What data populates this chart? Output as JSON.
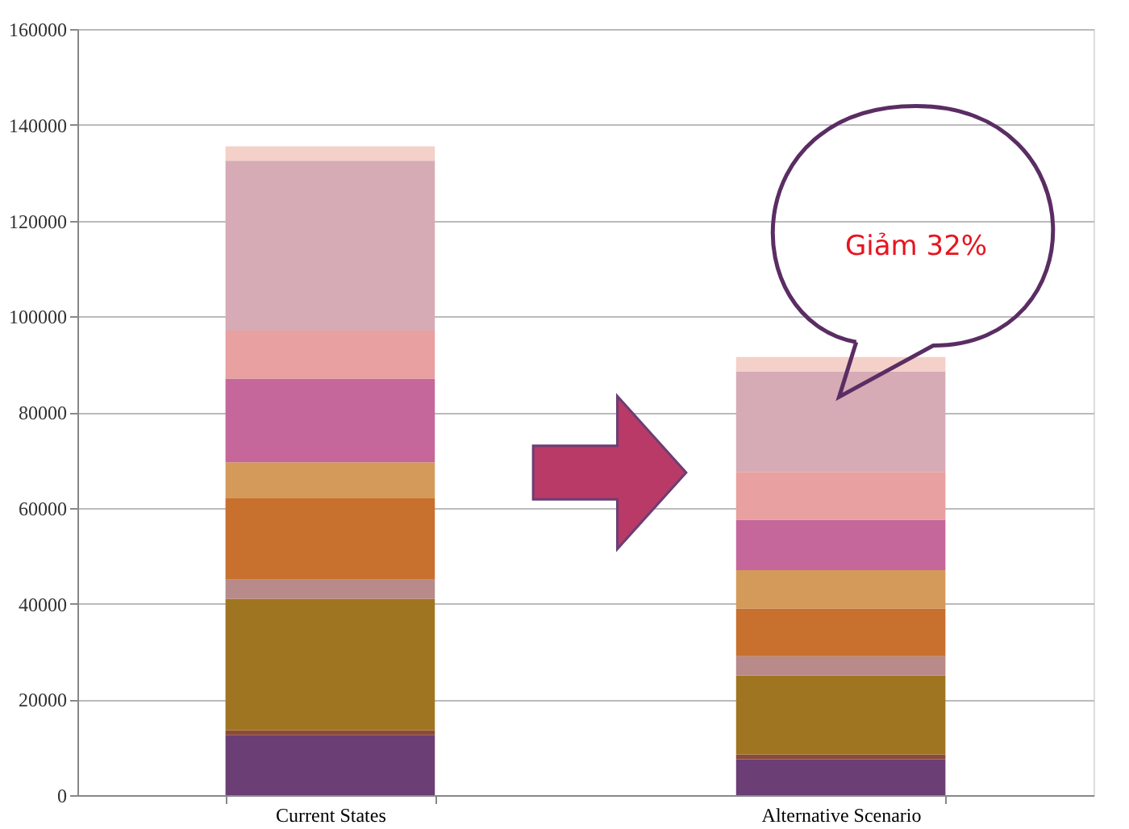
{
  "chart_data": {
    "type": "bar",
    "stacked": true,
    "categories": [
      "Current States",
      "Alternative Scenario"
    ],
    "series": [
      {
        "color": "#6b3e75",
        "values": [
          12500,
          7500
        ]
      },
      {
        "color": "#8c4a3a",
        "values": [
          1000,
          1000
        ]
      },
      {
        "color": "#a07522",
        "values": [
          27500,
          16500
        ]
      },
      {
        "color": "#b88a8a",
        "values": [
          4000,
          4000
        ]
      },
      {
        "color": "#c8702e",
        "values": [
          17000,
          10000
        ]
      },
      {
        "color": "#d49a5a",
        "values": [
          7500,
          8000
        ]
      },
      {
        "color": "#c6679b",
        "values": [
          17500,
          10500
        ]
      },
      {
        "color": "#e8a0a0",
        "values": [
          10000,
          10000
        ]
      },
      {
        "color": "#d6abb5",
        "values": [
          35500,
          21000
        ]
      },
      {
        "color": "#f3d0c8",
        "values": [
          3000,
          3000
        ]
      }
    ],
    "ylim": [
      0,
      160000
    ],
    "yticks": [
      0,
      20000,
      40000,
      60000,
      80000,
      100000,
      120000,
      140000,
      160000
    ],
    "grid": "y",
    "annotations": [
      "Giảm 32%"
    ]
  }
}
